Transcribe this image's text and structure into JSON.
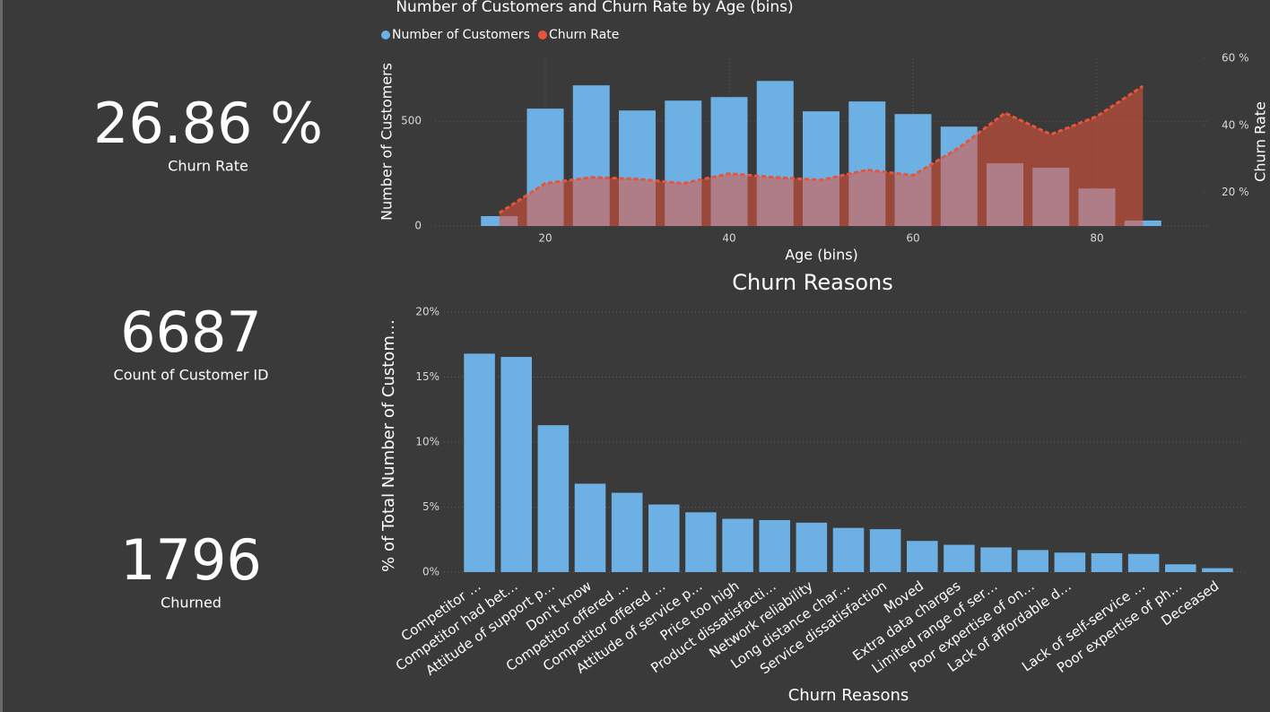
{
  "kpis": [
    {
      "value": "26.86 %",
      "label": "Churn Rate"
    },
    {
      "value": "6687",
      "label": "Count of Customer ID"
    },
    {
      "value": "1796",
      "label": "Churned"
    }
  ],
  "chart_data": [
    {
      "type": "combo",
      "title": "Number of Customers and Churn Rate by Age (bins)",
      "x_label": "Age (bins)",
      "y_label": "Number of Customers",
      "y2_label": "Churn Rate",
      "x": [
        15,
        20,
        25,
        30,
        35,
        40,
        45,
        50,
        55,
        60,
        65,
        70,
        75,
        80,
        85
      ],
      "xlim": [
        8,
        92
      ],
      "xticks": [
        20,
        40,
        60,
        80
      ],
      "ylim": [
        0,
        800
      ],
      "yticks": [
        0,
        500
      ],
      "y2lim": [
        10,
        60
      ],
      "y2ticks": [
        {
          "value": 20,
          "label": "20 %"
        },
        {
          "value": 40,
          "label": "40 %"
        },
        {
          "value": 60,
          "label": "60 %"
        }
      ],
      "grid": true,
      "series": [
        {
          "name": "Number of Customers",
          "type": "bar",
          "color": "#6cb0e4",
          "values": [
            47,
            560,
            671,
            551,
            598,
            615,
            692,
            547,
            594,
            534,
            474,
            299,
            278,
            179,
            26
          ]
        },
        {
          "name": "Churn Rate",
          "type": "area",
          "axis": "y2",
          "color": "#e8543a",
          "values": [
            13.9,
            22.7,
            24.5,
            24,
            22.7,
            25.6,
            24.5,
            23.7,
            26.7,
            25.1,
            33.3,
            43.7,
            37.3,
            42.7,
            51.7
          ]
        }
      ]
    },
    {
      "type": "bar",
      "title": "Churn Reasons",
      "x_label": "Churn Reasons",
      "y_label": "% of Total Number of Custom…",
      "categories": [
        "Competitor …",
        "Competitor had bet…",
        "Attitude of support p…",
        "Don't know",
        "Competitor offered …",
        "Competitor offered …",
        "Attitude of service p…",
        "Price too high",
        "Product dissatisfacti…",
        "Network reliability",
        "Long distance char…",
        "Service dissatisfaction",
        "Moved",
        "Extra data charges",
        "Limited range of ser…",
        "Poor expertise of on…",
        "Lack of affordable d…",
        null,
        "Lack of self-service …",
        "Poor expertise of ph…",
        "Deceased"
      ],
      "values": [
        16.8,
        16.55,
        11.3,
        6.8,
        6.1,
        5.2,
        4.6,
        4.1,
        4.0,
        3.8,
        3.4,
        3.3,
        2.4,
        2.1,
        1.9,
        1.7,
        1.5,
        1.45,
        1.4,
        0.6,
        0.3
      ],
      "color": "#6cb0e4",
      "ylim": [
        0,
        20
      ],
      "yticks": [
        {
          "value": 0,
          "label": "0%"
        },
        {
          "value": 5,
          "label": "5%"
        },
        {
          "value": 10,
          "label": "10%"
        },
        {
          "value": 15,
          "label": "15%"
        },
        {
          "value": 20,
          "label": "20%"
        }
      ],
      "grid": true
    }
  ]
}
